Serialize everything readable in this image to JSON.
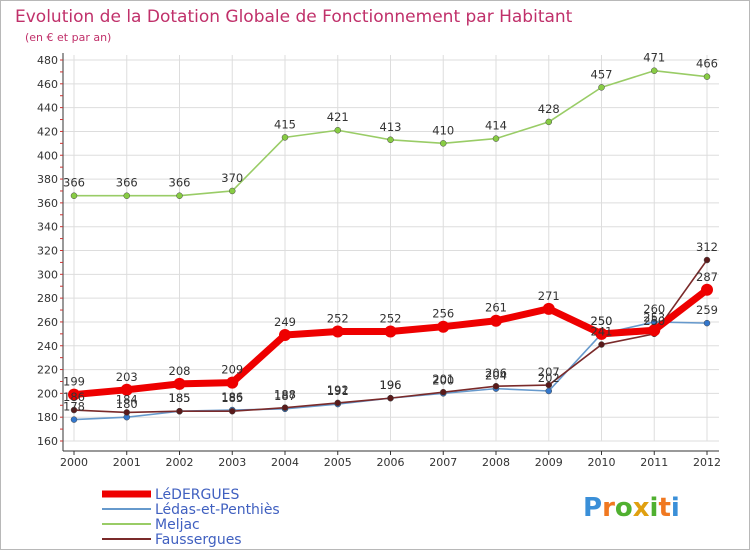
{
  "chart_data": {
    "type": "line",
    "title": "Evolution de la Dotation Globale de Fonctionnement par Habitant",
    "subtitle": "(en € et par an)",
    "x": [
      "2000",
      "2001",
      "2002",
      "2003",
      "2004",
      "2005",
      "2006",
      "2007",
      "2008",
      "2009",
      "2010",
      "2011",
      "2012"
    ],
    "ylim": [
      160,
      480
    ],
    "yticks": [
      160,
      180,
      200,
      220,
      240,
      260,
      280,
      300,
      320,
      340,
      360,
      380,
      400,
      420,
      440,
      460,
      480
    ],
    "grid": true,
    "legend_position": "bottom-left",
    "series": [
      {
        "name": "Meljac",
        "color": "#99cc66",
        "marker": "#88cc44",
        "values": [
          366,
          366,
          366,
          370,
          415,
          421,
          413,
          410,
          414,
          428,
          457,
          471,
          466
        ],
        "labels": [
          "366",
          "366",
          "366",
          "370",
          "415",
          "421",
          "413",
          "410",
          "414",
          "428",
          "457",
          "471",
          "466"
        ]
      },
      {
        "name": "Lédas-et-Penthiès",
        "color": "#6699cc",
        "marker": "#3377cc",
        "values": [
          178,
          180,
          185,
          186,
          187,
          191,
          196,
          200,
          204,
          202,
          250,
          260,
          259
        ],
        "labels": [
          "178",
          "180",
          "185",
          "186",
          "187",
          "191",
          "196",
          "200",
          "204",
          "202",
          "250",
          "260",
          "259"
        ]
      },
      {
        "name": "Faussergues",
        "color": "#7a2a2a",
        "marker": "#5a1a1a",
        "values": [
          186,
          184,
          185,
          185,
          188,
          192,
          196,
          201,
          206,
          207,
          241,
          250,
          312
        ],
        "labels": [
          "186",
          "184",
          "185",
          "185",
          "188",
          "192",
          "196",
          "201",
          "206",
          "207",
          "241",
          "250",
          "312"
        ]
      },
      {
        "name": "LéDERGUES",
        "color": "#ee0000",
        "marker": "#ee0000",
        "values": [
          199,
          203,
          208,
          209,
          249,
          252,
          252,
          256,
          261,
          271,
          250,
          253,
          287
        ],
        "labels": [
          "199",
          "203",
          "208",
          "209",
          "249",
          "252",
          "252",
          "256",
          "261",
          "271",
          "250",
          "253",
          "287"
        ]
      }
    ]
  },
  "brand": {
    "letters": [
      "P",
      "r",
      "o",
      "x",
      "i",
      "t",
      "i"
    ],
    "colors": [
      "#3a8fd8",
      "#f07820",
      "#50b030",
      "#e0a010",
      "#50b030",
      "#f07820",
      "#3a8fd8"
    ]
  }
}
